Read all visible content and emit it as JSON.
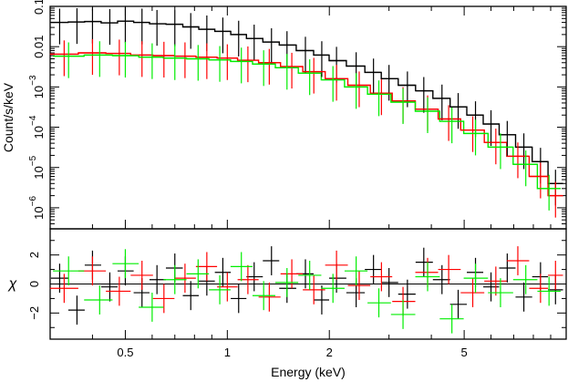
{
  "chart_data": [
    {
      "panel": "spectrum",
      "type": "scatter",
      "ylabel": "Count/s/keV",
      "xlabel": "Energy (keV)",
      "xscale": "log",
      "yscale": "log",
      "xlim": [
        0.3,
        10
      ],
      "ylim": [
        3e-07,
        0.1
      ],
      "x_ticks": [
        "0.5",
        "1",
        "2",
        "5"
      ],
      "y_ticks": [
        {
          "base": "0.1",
          "exp": ""
        },
        {
          "base": "0.01",
          "exp": ""
        },
        {
          "base": "10",
          "exp": "−3"
        },
        {
          "base": "10",
          "exp": "−4"
        },
        {
          "base": "10",
          "exp": "−5"
        },
        {
          "base": "10",
          "exp": "−6"
        }
      ],
      "series": [
        {
          "color": "#000000",
          "x": [
            0.32,
            0.36,
            0.4,
            0.45,
            0.5,
            0.56,
            0.62,
            0.7,
            0.78,
            0.87,
            0.97,
            1.08,
            1.2,
            1.35,
            1.5,
            1.7,
            1.9,
            2.1,
            2.4,
            2.7,
            3.0,
            3.4,
            3.8,
            4.3,
            4.8,
            5.4,
            6.0,
            6.7,
            7.5,
            8.4,
            9.3
          ],
          "y": [
            0.04,
            0.041,
            0.042,
            0.039,
            0.043,
            0.04,
            0.037,
            0.036,
            0.031,
            0.027,
            0.024,
            0.02,
            0.016,
            0.013,
            0.011,
            0.008,
            0.0062,
            0.0045,
            0.0033,
            0.0023,
            0.0016,
            0.0011,
            0.0008,
            0.00052,
            0.00032,
            0.0002,
            0.00012,
            6.5e-05,
            3.2e-05,
            1.4e-05,
            4e-06
          ]
        },
        {
          "color": "#ff0000",
          "x": [
            0.33,
            0.4,
            0.48,
            0.56,
            0.65,
            0.75,
            0.87,
            1.0,
            1.15,
            1.33,
            1.55,
            1.8,
            2.1,
            2.45,
            2.85,
            3.3,
            3.9,
            4.5,
            5.3,
            6.2,
            7.2,
            8.4,
            9.3
          ],
          "y": [
            0.0065,
            0.007,
            0.0068,
            0.0062,
            0.006,
            0.0058,
            0.0055,
            0.0052,
            0.0046,
            0.004,
            0.0032,
            0.0024,
            0.0016,
            0.0011,
            0.0007,
            0.00045,
            0.00028,
            0.00016,
            8.5e-05,
            4.2e-05,
            1.9e-05,
            6e-06,
            2e-06
          ]
        },
        {
          "color": "#00ee00",
          "x": [
            0.34,
            0.42,
            0.5,
            0.6,
            0.7,
            0.82,
            0.95,
            1.1,
            1.28,
            1.5,
            1.75,
            2.05,
            2.4,
            2.8,
            3.3,
            3.9,
            4.6,
            5.4,
            6.4,
            7.6,
            8.9
          ],
          "y": [
            0.0058,
            0.0062,
            0.006,
            0.0055,
            0.0052,
            0.005,
            0.0047,
            0.0043,
            0.0037,
            0.003,
            0.0022,
            0.0015,
            0.001,
            0.00066,
            0.00042,
            0.00025,
            0.00014,
            7e-05,
            3.2e-05,
            1.2e-05,
            3e-06
          ]
        }
      ]
    },
    {
      "panel": "residuals",
      "type": "scatter",
      "ylabel": "χ",
      "xlabel": "Energy (keV)",
      "xscale": "log",
      "xlim": [
        0.3,
        10
      ],
      "ylim": [
        -3.8,
        3.8
      ],
      "y_ticks": [
        "2",
        "0",
        "−2"
      ],
      "series": [
        {
          "color": "#000000",
          "x": [
            0.32,
            0.36,
            0.4,
            0.45,
            0.5,
            0.56,
            0.62,
            0.7,
            0.78,
            0.87,
            0.97,
            1.08,
            1.2,
            1.35,
            1.5,
            1.7,
            1.9,
            2.1,
            2.4,
            2.7,
            3.0,
            3.4,
            3.8,
            4.3,
            4.8,
            5.4,
            6.0,
            6.7,
            7.5,
            8.4,
            9.3
          ],
          "y": [
            0.4,
            -1.8,
            1.3,
            -0.2,
            0.9,
            -0.6,
            0.3,
            1.1,
            -0.8,
            0.2,
            0.8,
            -1.0,
            0.5,
            1.6,
            -0.3,
            0.7,
            -1.1,
            0.4,
            -0.6,
            1.0,
            0.1,
            -0.7,
            1.5,
            0.3,
            -1.4,
            0.8,
            -0.2,
            1.1,
            -0.9,
            0.5,
            -0.4
          ]
        },
        {
          "color": "#ff0000",
          "x": [
            0.33,
            0.4,
            0.48,
            0.56,
            0.65,
            0.75,
            0.87,
            1.0,
            1.15,
            1.33,
            1.55,
            1.8,
            2.1,
            2.45,
            2.85,
            3.3,
            3.9,
            4.5,
            5.3,
            6.2,
            7.2,
            8.4,
            9.3
          ],
          "y": [
            -0.3,
            0.9,
            -0.5,
            0.6,
            -1.0,
            0.4,
            1.2,
            -0.2,
            0.3,
            -0.9,
            0.7,
            -0.4,
            1.3,
            -0.1,
            0.5,
            -1.2,
            0.8,
            1.0,
            -0.6,
            0.2,
            1.6,
            -0.3,
            0.6
          ]
        },
        {
          "color": "#00ee00",
          "x": [
            0.34,
            0.42,
            0.5,
            0.6,
            0.7,
            0.82,
            0.95,
            1.1,
            1.28,
            1.5,
            1.75,
            2.05,
            2.4,
            2.8,
            3.3,
            3.9,
            4.6,
            5.4,
            6.4,
            7.6,
            8.9
          ],
          "y": [
            0.9,
            -1.1,
            1.4,
            -1.6,
            0.3,
            0.7,
            -0.4,
            1.2,
            -0.8,
            0.1,
            0.6,
            -0.3,
            0.9,
            -1.3,
            -2.1,
            0.5,
            -2.4,
            0.4,
            -0.6,
            0.3,
            -0.5
          ]
        }
      ]
    }
  ]
}
